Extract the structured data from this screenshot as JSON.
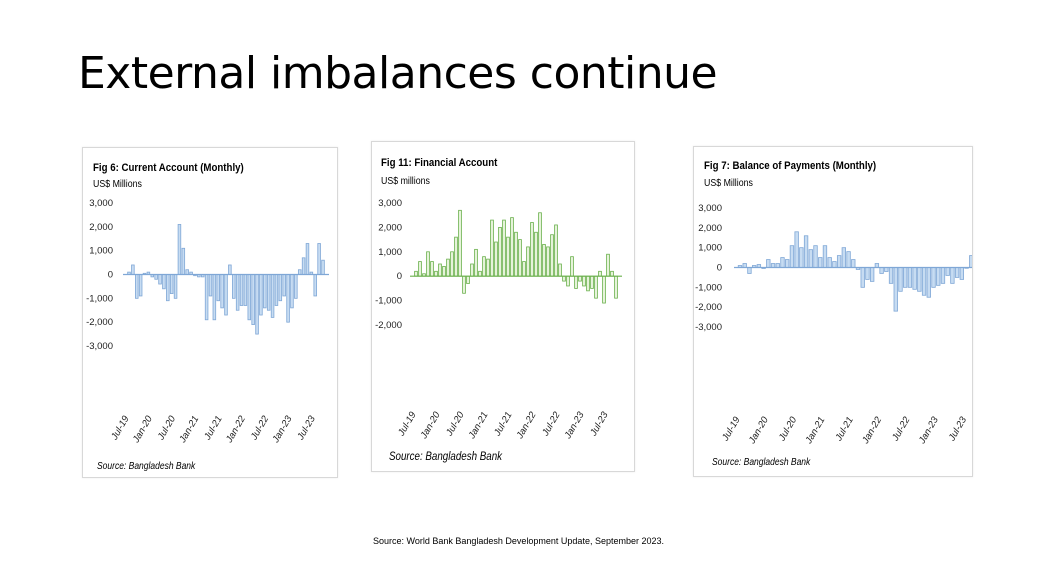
{
  "title": "External imbalances continue",
  "source_note": "Source: World Bank Bangladesh Development Update, September 2023.",
  "chart_data": [
    {
      "type": "bar",
      "title": "Fig 6: Current Account (Monthly)",
      "ylabel": "US$ Millions",
      "source": "Source: Bangladesh Bank",
      "ylim": [
        -3000,
        3000
      ],
      "yticks": [
        3000,
        2000,
        1000,
        0,
        -1000,
        -2000,
        -3000
      ],
      "ytick_labels": [
        "3,000",
        "2,000",
        "1,000",
        "0",
        "-1,000",
        "-2,000",
        "-3,000"
      ],
      "xtick_labels": [
        "Jul-19",
        "Jan-20",
        "Jul-20",
        "Jan-21",
        "Jul-21",
        "Jan-22",
        "Jul-22",
        "Jan-23",
        "Jul-23"
      ],
      "color": "#c7dcf2",
      "stroke": "#7fa7d6",
      "series": [
        {
          "values": [
            100,
            400,
            -1000,
            -900,
            50,
            100,
            -100,
            -200,
            -400,
            -600,
            -1100,
            -800,
            -1000,
            2100,
            1100,
            200,
            100,
            -50,
            -100,
            -100,
            -1900,
            -900,
            -1900,
            -1100,
            -1400,
            -1700,
            400,
            -1000,
            -1500,
            -1300,
            -1300,
            -1900,
            -2100,
            -2500,
            -1700,
            -1400,
            -1500,
            -1800,
            -1300,
            -1100,
            -900,
            -2000,
            -1400,
            -1000,
            200,
            700,
            1300,
            100,
            -900,
            1300,
            600
          ]
        }
      ]
    },
    {
      "type": "bar",
      "title": "Fig 11: Financial Account",
      "ylabel": "US$ millions",
      "source": "Source: Bangladesh Bank",
      "ylim": [
        -2000,
        3000
      ],
      "yticks": [
        3000,
        2000,
        1000,
        0,
        -1000,
        -2000
      ],
      "ytick_labels": [
        "3,000",
        "2,000",
        "1,000",
        "0",
        "-1,000",
        "-2,000"
      ],
      "xtick_labels": [
        "Jul-19",
        "Jan-20",
        "Jul-20",
        "Jan-21",
        "Jul-21",
        "Jan-22",
        "Jul-22",
        "Jan-23",
        "Jul-23"
      ],
      "color": "#e6f3da",
      "stroke": "#6ab04c",
      "series": [
        {
          "values": [
            200,
            600,
            100,
            1000,
            600,
            200,
            500,
            400,
            700,
            1000,
            1600,
            2700,
            -700,
            -300,
            500,
            1100,
            200,
            800,
            700,
            2300,
            1400,
            2000,
            2300,
            1600,
            2400,
            1800,
            1500,
            600,
            1200,
            2200,
            1800,
            2600,
            1300,
            1200,
            1700,
            2100,
            500,
            -200,
            -400,
            800,
            -500,
            -200,
            -400,
            -600,
            -500,
            -900,
            200,
            -1100,
            900,
            200,
            -900
          ]
        }
      ]
    },
    {
      "type": "bar",
      "title": "Fig 7: Balance of Payments (Monthly)",
      "ylabel": "US$ Millions",
      "source": "Source: Bangladesh Bank",
      "ylim": [
        -3000,
        3000
      ],
      "yticks": [
        3000,
        2000,
        1000,
        0,
        -1000,
        -2000,
        -3000
      ],
      "ytick_labels": [
        "3,000",
        "2,000",
        "1,000",
        "0",
        "-1,000",
        "-2,000",
        "-3,000"
      ],
      "xtick_labels": [
        "Jul-19",
        "Jan-20",
        "Jul-20",
        "Jan-21",
        "Jul-21",
        "Jan-22",
        "Jul-22",
        "Jan-23",
        "Jul-23"
      ],
      "color": "#c7dcf2",
      "stroke": "#7fa7d6",
      "series": [
        {
          "values": [
            100,
            200,
            -300,
            100,
            150,
            -50,
            400,
            200,
            200,
            500,
            400,
            1100,
            1800,
            1000,
            1600,
            900,
            1100,
            500,
            1100,
            500,
            300,
            600,
            1000,
            800,
            400,
            -100,
            -1000,
            -600,
            -700,
            200,
            -300,
            -200,
            -800,
            -2200,
            -1200,
            -1000,
            -1000,
            -1100,
            -1200,
            -1400,
            -1500,
            -1000,
            -900,
            -800,
            -400,
            -800,
            -500,
            -600,
            0,
            600,
            -1000
          ]
        }
      ]
    }
  ]
}
